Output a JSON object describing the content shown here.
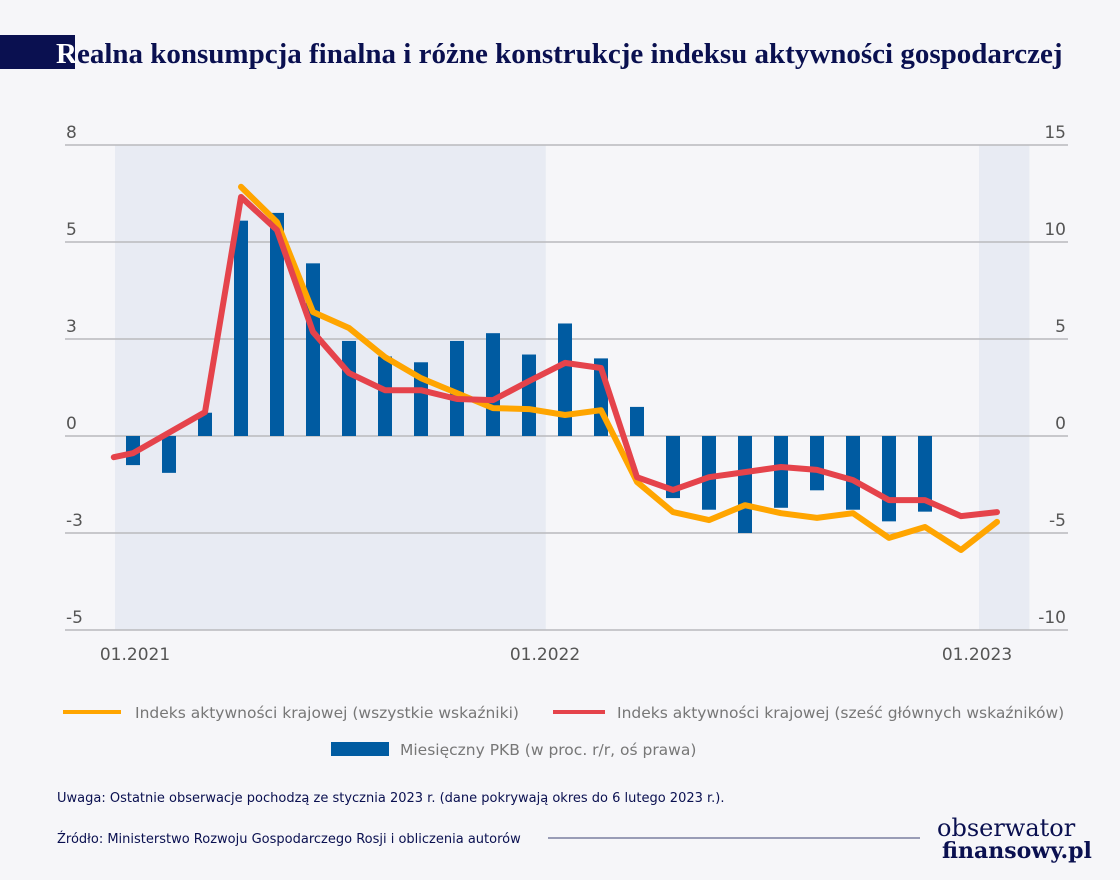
{
  "title_initial": "R",
  "title_rest": "ealna konsumpcja finalna i różne konstrukcje indeksu aktywności gospodarczej",
  "colors": {
    "navy": "#0a1050",
    "bars": "#005ba1",
    "yellow": "#ffa500",
    "red": "#e5434b",
    "shade": "#e8ebf3",
    "grid": "#b9b9bd"
  },
  "chart_data": {
    "type": "bar+line",
    "x_tick_labels": [
      {
        "label": "01.2021",
        "month": "2021-01"
      },
      {
        "label": "01.2022",
        "month": "2022-01"
      },
      {
        "label": "01.2023",
        "month": "2023-01"
      }
    ],
    "shaded_periods": [
      [
        "2020-12-16",
        "2021-12-15"
      ],
      [
        "2022-12-16",
        "2023-01-28"
      ]
    ],
    "left_axis": {
      "ticks": [
        "8",
        "5",
        "3",
        "0",
        "-3",
        "-5"
      ],
      "ylim": [
        -5.33,
        8
      ]
    },
    "right_axis": {
      "ticks": [
        "15",
        "10",
        "5",
        "0",
        "-5",
        "-10"
      ],
      "ylim": [
        -10,
        15
      ]
    },
    "grid": true,
    "legend_placement": "bottom",
    "series": [
      {
        "name": "Miesięczny PKB (w proc. r/r, oś prawa)",
        "type": "bar",
        "axis": "right",
        "color": "#005ba1",
        "months": [
          "2021-01",
          "2021-02",
          "2021-03",
          "2021-04",
          "2021-05",
          "2021-06",
          "2021-07",
          "2021-08",
          "2021-09",
          "2021-10",
          "2021-11",
          "2021-12",
          "2022-01",
          "2022-02",
          "2022-03",
          "2022-04",
          "2022-05",
          "2022-06",
          "2022-07",
          "2022-08",
          "2022-09",
          "2022-10",
          "2022-11"
        ],
        "values": [
          -1.5,
          -1.9,
          1.2,
          11.1,
          11.5,
          8.9,
          4.9,
          4.1,
          3.8,
          4.9,
          5.3,
          4.2,
          5.8,
          4.0,
          1.5,
          -3.2,
          -3.8,
          -5.0,
          -3.7,
          -2.8,
          -3.8,
          -4.4,
          -3.9
        ]
      },
      {
        "name": "Indeks aktywności krajowej (wszystkie wskaźniki)",
        "type": "line",
        "axis": "left",
        "color": "#ffa500",
        "points": [
          [
            "2021-04",
            6.85
          ],
          [
            "2021-05",
            5.88
          ],
          [
            "2021-06",
            3.41
          ],
          [
            "2021-07",
            2.97
          ],
          [
            "2021-08",
            2.17
          ],
          [
            "2021-09",
            1.59
          ],
          [
            "2021-10",
            1.18
          ],
          [
            "2021-11",
            0.77
          ],
          [
            "2021-12",
            0.74
          ],
          [
            "2022-01",
            0.58
          ],
          [
            "2022-02",
            0.71
          ],
          [
            "2022-03",
            -1.26
          ],
          [
            "2022-04",
            -2.09
          ],
          [
            "2022-05",
            -2.31
          ],
          [
            "2022-06",
            -1.9
          ],
          [
            "2022-07",
            -2.12
          ],
          [
            "2022-08",
            -2.25
          ],
          [
            "2022-09",
            -2.12
          ],
          [
            "2022-10",
            -2.8
          ],
          [
            "2022-11",
            -2.5
          ],
          [
            "2022-12",
            -3.13
          ],
          [
            "2023-01",
            -2.36
          ]
        ]
      },
      {
        "name": "Indeks aktywności krajowej (sześć głównych wskaźników)",
        "type": "line",
        "axis": "left",
        "color": "#e5434b",
        "points": [
          [
            "2020-12-15",
            -0.58
          ],
          [
            "2021-01",
            -0.47
          ],
          [
            "2021-03",
            0.66
          ],
          [
            "2021-04",
            6.57
          ],
          [
            "2021-05",
            5.66
          ],
          [
            "2021-06",
            2.86
          ],
          [
            "2021-07",
            1.73
          ],
          [
            "2021-08",
            1.26
          ],
          [
            "2021-09",
            1.26
          ],
          [
            "2021-10",
            1.02
          ],
          [
            "2021-11",
            0.99
          ],
          [
            "2021-12",
            1.51
          ],
          [
            "2022-01",
            2.01
          ],
          [
            "2022-02",
            1.87
          ],
          [
            "2022-03",
            -1.13
          ],
          [
            "2022-04",
            -1.48
          ],
          [
            "2022-05",
            -1.13
          ],
          [
            "2022-06",
            -0.99
          ],
          [
            "2022-07",
            -0.85
          ],
          [
            "2022-08",
            -0.93
          ],
          [
            "2022-09",
            -1.21
          ],
          [
            "2022-10",
            -1.76
          ],
          [
            "2022-11",
            -1.76
          ],
          [
            "2022-12",
            -2.2
          ],
          [
            "2023-01",
            -2.09
          ]
        ]
      }
    ]
  },
  "legend": {
    "yellow": "Indeks aktywności krajowej (wszystkie wskaźniki)",
    "red": "Indeks aktywności krajowej (sześć głównych wskaźników)",
    "bars": "Miesięczny PKB (w proc. r/r, oś prawa)"
  },
  "note": "Uwaga: Ostatnie obserwacje pochodzą ze stycznia 2023 r. (dane pokrywają okres do 6 lutego 2023 r.).",
  "source": "Źródło: Ministerstwo Rozwoju Gospodarczego Rosji i obliczenia autorów",
  "logo": {
    "line1": "obserwator",
    "line2": "finansowy.pl"
  }
}
